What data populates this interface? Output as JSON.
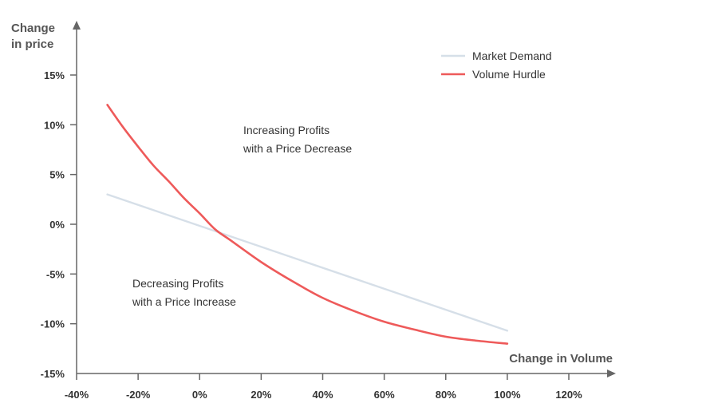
{
  "chart_data": {
    "type": "line",
    "xlabel": "Change in Volume",
    "ylabel_lines": [
      "Change",
      "in price"
    ],
    "xlim": [
      -40,
      120
    ],
    "ylim": [
      -15,
      15
    ],
    "x_ticks": [
      -40,
      -20,
      0,
      20,
      40,
      60,
      80,
      100,
      120
    ],
    "y_ticks": [
      -15,
      -10,
      -5,
      0,
      5,
      10,
      15
    ],
    "x_tick_labels": [
      "-40%",
      "-20%",
      "0%",
      "20%",
      "40%",
      "60%",
      "80%",
      "100%",
      "120%"
    ],
    "y_tick_labels": [
      "-15%",
      "-10%",
      "-5%",
      "0%",
      "5%",
      "10%",
      "15%"
    ],
    "legend_position": "top-right",
    "series": [
      {
        "name": "Market Demand",
        "color": "#d6dfe8",
        "x": [
          -30,
          100
        ],
        "y": [
          3,
          -10.7
        ]
      },
      {
        "name": "Volume Hurdle",
        "color": "#ee5a5a",
        "x": [
          -30,
          -25,
          -20,
          -15,
          -10,
          -5,
          0,
          5,
          10,
          20,
          30,
          40,
          50,
          60,
          70,
          80,
          90,
          100
        ],
        "y": [
          12,
          9.8,
          7.8,
          5.9,
          4.3,
          2.6,
          1.1,
          -0.5,
          -1.6,
          -3.8,
          -5.7,
          -7.4,
          -8.7,
          -9.8,
          -10.6,
          -11.3,
          -11.7,
          -12
        ]
      }
    ],
    "annotations": [
      {
        "lines": [
          "Increasing Profits",
          "with a Price Decrease"
        ]
      },
      {
        "lines": [
          "Decreasing Profits",
          "with a Price Increase"
        ]
      }
    ]
  }
}
